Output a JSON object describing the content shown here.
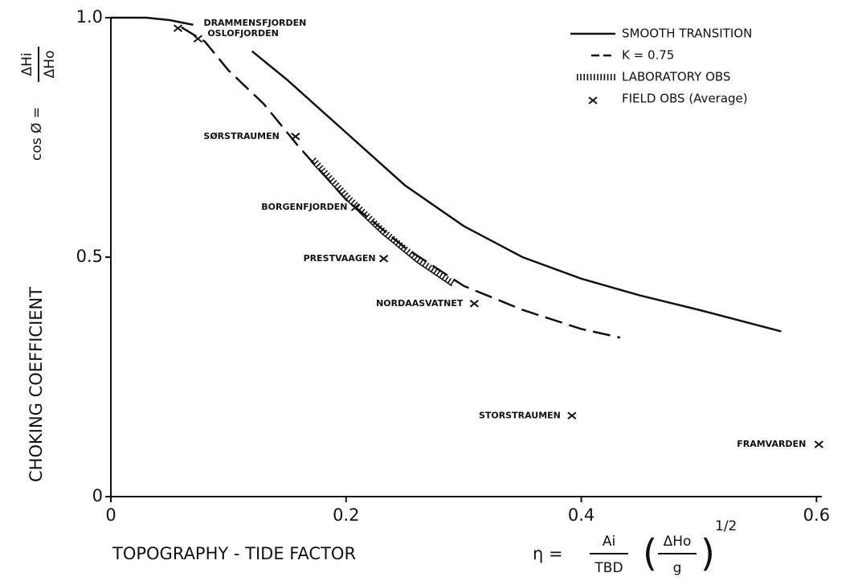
{
  "chart_data": {
    "type": "line",
    "x_label": "TOPOGRAPHY - TIDE   FACTOR",
    "x_formula": {
      "lhs": "η =",
      "num1": "Ai",
      "den1": "TBD",
      "num2": "ΔHo",
      "den2": "g",
      "power": "1/2"
    },
    "y_label": "CHOKING   COEFFICIENT",
    "y_formula": {
      "lhs": "cos Ø =",
      "num": "ΔHi",
      "den": "ΔHo"
    },
    "xlim": [
      0,
      0.61
    ],
    "ylim": [
      0,
      1.0
    ],
    "xticks": [
      0,
      0.2,
      0.4,
      0.6
    ],
    "yticks": [
      0,
      0.5,
      {
        "value": 1.0,
        "label": "1.0"
      }
    ],
    "legend": "upper right",
    "series": [
      {
        "name": "SMOOTH  TRANSITION",
        "style": "solid",
        "color": "#111111",
        "x": [
          0,
          0.03,
          0.05,
          0.07,
          null,
          0.12,
          0.15,
          0.2,
          0.25,
          0.3,
          0.35,
          0.4,
          0.45,
          0.5,
          0.57
        ],
        "values": [
          1.0,
          1.0,
          0.995,
          0.985,
          null,
          0.93,
          0.87,
          0.76,
          0.65,
          0.565,
          0.5,
          0.455,
          0.42,
          0.39,
          0.345
        ]
      },
      {
        "name": "K = 0.75",
        "style": "dashed",
        "color": "#111111",
        "x": [
          0.06,
          0.08,
          0.1,
          0.13,
          0.16,
          0.2,
          0.25,
          0.3,
          0.35,
          0.4,
          0.433
        ],
        "values": [
          0.98,
          0.95,
          0.89,
          0.82,
          0.73,
          0.62,
          0.52,
          0.44,
          0.39,
          0.35,
          0.332
        ]
      },
      {
        "name": "LABORATORY OBS",
        "style": "hatched",
        "color": "#111111",
        "x": [
          0.17,
          0.2,
          0.23,
          0.26,
          0.29
        ],
        "values": [
          0.7,
          0.62,
          0.55,
          0.49,
          0.44
        ]
      },
      {
        "name": "FIELD  OBS (Average)",
        "style": "cross",
        "color": "#111111",
        "x": [
          0.057,
          0.074,
          0.157,
          0.208,
          0.232,
          0.309,
          0.392,
          0.602
        ],
        "values": [
          0.978,
          0.956,
          0.752,
          0.604,
          0.497,
          0.403,
          0.169,
          0.109
        ],
        "point_labels": [
          "DRAMMENSFJORDEN",
          "OSLOFJORDEN",
          "SØRSTRAUMEN",
          "BORGENFJORDEN",
          "PRESTVAAGEN",
          "NORDAASVATNET",
          "STORSTRAUMEN",
          "FRAMVARDEN"
        ]
      }
    ]
  }
}
